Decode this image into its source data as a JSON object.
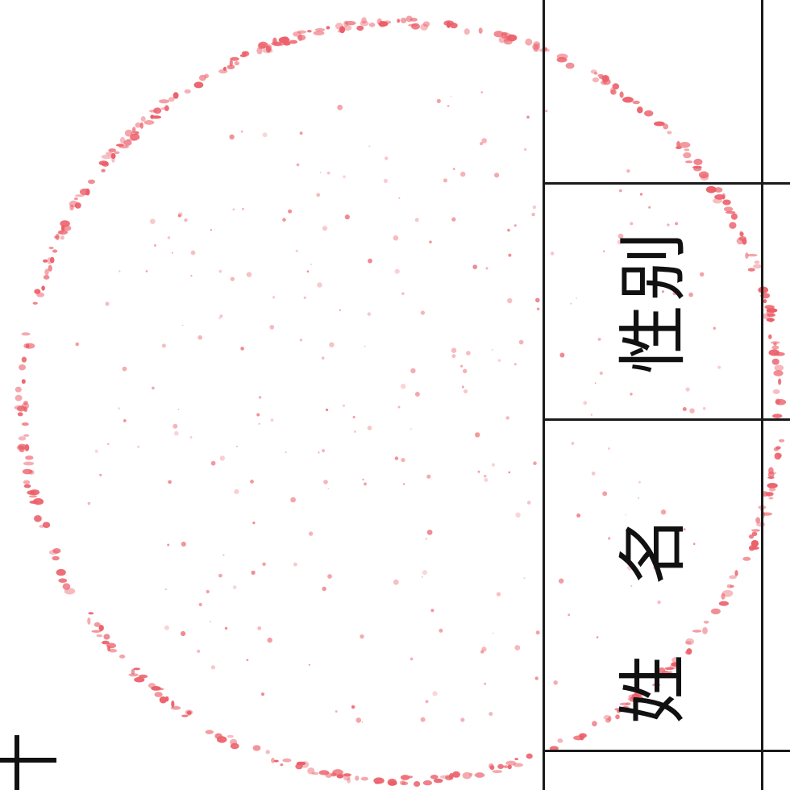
{
  "document": {
    "labels": {
      "gender": "性别",
      "name": "姓名"
    }
  },
  "colors": {
    "stamp": "#e8434f",
    "line": "#1a1a1a",
    "text": "#111111",
    "paper": "#ffffff"
  },
  "icons": {
    "stamp": "red-seal-stamp-icon",
    "corner_mark": "crosshair-mark-icon"
  }
}
